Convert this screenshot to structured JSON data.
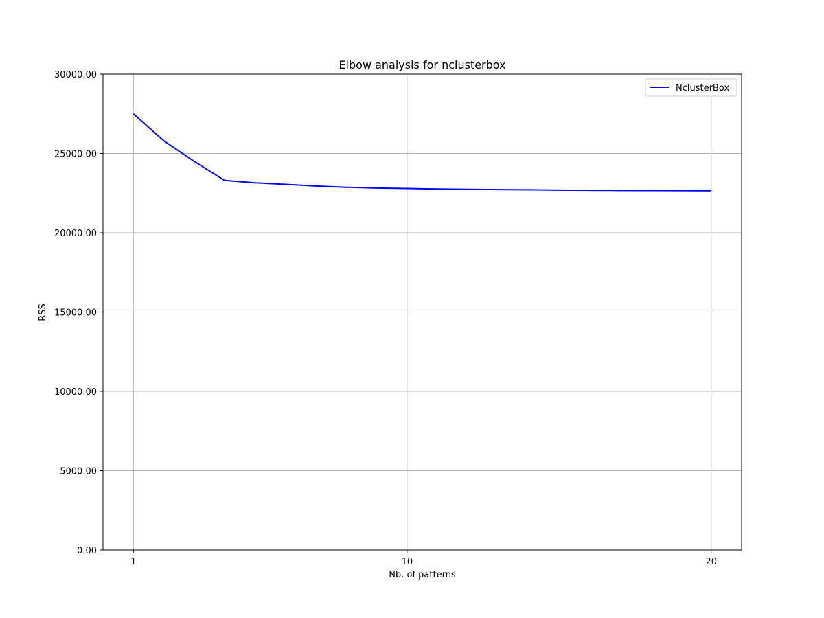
{
  "chart_data": {
    "type": "line",
    "title": "Elbow analysis for nclusterbox",
    "xlabel": "Nb. of patterns",
    "ylabel": "RSS",
    "xlim": [
      0,
      21
    ],
    "ylim": [
      0,
      30000
    ],
    "xticks": [
      1,
      10,
      20
    ],
    "xtick_labels": [
      "1",
      "10",
      "20"
    ],
    "yticks": [
      0,
      5000,
      10000,
      15000,
      20000,
      25000,
      30000
    ],
    "ytick_labels": [
      "0.00",
      "5000.00",
      "10000.00",
      "15000.00",
      "20000.00",
      "25000.00",
      "30000.00"
    ],
    "grid": true,
    "legend": "top-right",
    "series": [
      {
        "name": "NclusterBox",
        "color": "#0000ff",
        "x": [
          1,
          2,
          3,
          4,
          5,
          6,
          7,
          8,
          9,
          10,
          11,
          12,
          13,
          14,
          15,
          16,
          17,
          18,
          19,
          20
        ],
        "y": [
          27500,
          25800,
          24500,
          23300,
          23150,
          23050,
          22950,
          22870,
          22820,
          22790,
          22760,
          22740,
          22720,
          22710,
          22690,
          22680,
          22670,
          22660,
          22655,
          22650
        ]
      }
    ]
  }
}
